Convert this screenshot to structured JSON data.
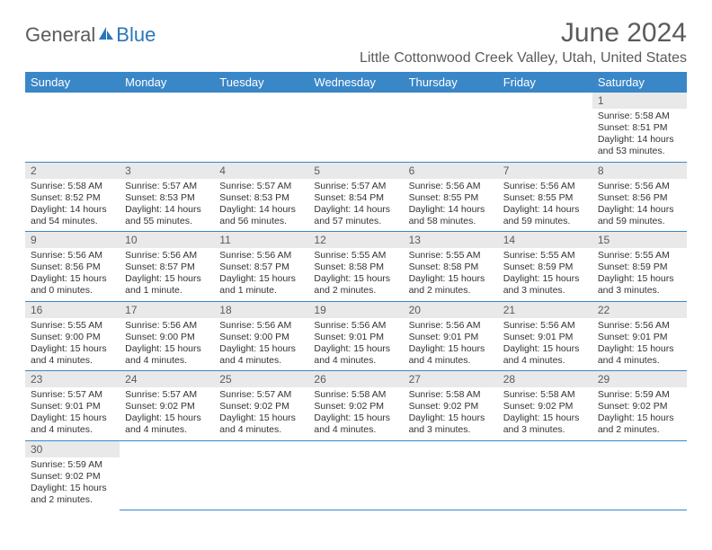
{
  "brand": {
    "part1": "General",
    "part2": "Blue"
  },
  "title": "June 2024",
  "location": "Little Cottonwood Creek Valley, Utah, United States",
  "colors": {
    "header_bg": "#3a87c8",
    "header_text": "#ffffff",
    "daynum_bg": "#e9e9e9",
    "text_gray": "#5b5b5b",
    "rule": "#3a87c8",
    "logo_blue": "#2876bb"
  },
  "typography": {
    "title_fontsize": 30,
    "location_fontsize": 16,
    "header_fontsize": 13,
    "daynum_fontsize": 12,
    "detail_fontsize": 10.5
  },
  "days": [
    "Sunday",
    "Monday",
    "Tuesday",
    "Wednesday",
    "Thursday",
    "Friday",
    "Saturday"
  ],
  "weeks": [
    [
      null,
      null,
      null,
      null,
      null,
      null,
      {
        "n": "1",
        "sr": "Sunrise: 5:58 AM",
        "ss": "Sunset: 8:51 PM",
        "dl": "Daylight: 14 hours and 53 minutes."
      }
    ],
    [
      {
        "n": "2",
        "sr": "Sunrise: 5:58 AM",
        "ss": "Sunset: 8:52 PM",
        "dl": "Daylight: 14 hours and 54 minutes."
      },
      {
        "n": "3",
        "sr": "Sunrise: 5:57 AM",
        "ss": "Sunset: 8:53 PM",
        "dl": "Daylight: 14 hours and 55 minutes."
      },
      {
        "n": "4",
        "sr": "Sunrise: 5:57 AM",
        "ss": "Sunset: 8:53 PM",
        "dl": "Daylight: 14 hours and 56 minutes."
      },
      {
        "n": "5",
        "sr": "Sunrise: 5:57 AM",
        "ss": "Sunset: 8:54 PM",
        "dl": "Daylight: 14 hours and 57 minutes."
      },
      {
        "n": "6",
        "sr": "Sunrise: 5:56 AM",
        "ss": "Sunset: 8:55 PM",
        "dl": "Daylight: 14 hours and 58 minutes."
      },
      {
        "n": "7",
        "sr": "Sunrise: 5:56 AM",
        "ss": "Sunset: 8:55 PM",
        "dl": "Daylight: 14 hours and 59 minutes."
      },
      {
        "n": "8",
        "sr": "Sunrise: 5:56 AM",
        "ss": "Sunset: 8:56 PM",
        "dl": "Daylight: 14 hours and 59 minutes."
      }
    ],
    [
      {
        "n": "9",
        "sr": "Sunrise: 5:56 AM",
        "ss": "Sunset: 8:56 PM",
        "dl": "Daylight: 15 hours and 0 minutes."
      },
      {
        "n": "10",
        "sr": "Sunrise: 5:56 AM",
        "ss": "Sunset: 8:57 PM",
        "dl": "Daylight: 15 hours and 1 minute."
      },
      {
        "n": "11",
        "sr": "Sunrise: 5:56 AM",
        "ss": "Sunset: 8:57 PM",
        "dl": "Daylight: 15 hours and 1 minute."
      },
      {
        "n": "12",
        "sr": "Sunrise: 5:55 AM",
        "ss": "Sunset: 8:58 PM",
        "dl": "Daylight: 15 hours and 2 minutes."
      },
      {
        "n": "13",
        "sr": "Sunrise: 5:55 AM",
        "ss": "Sunset: 8:58 PM",
        "dl": "Daylight: 15 hours and 2 minutes."
      },
      {
        "n": "14",
        "sr": "Sunrise: 5:55 AM",
        "ss": "Sunset: 8:59 PM",
        "dl": "Daylight: 15 hours and 3 minutes."
      },
      {
        "n": "15",
        "sr": "Sunrise: 5:55 AM",
        "ss": "Sunset: 8:59 PM",
        "dl": "Daylight: 15 hours and 3 minutes."
      }
    ],
    [
      {
        "n": "16",
        "sr": "Sunrise: 5:55 AM",
        "ss": "Sunset: 9:00 PM",
        "dl": "Daylight: 15 hours and 4 minutes."
      },
      {
        "n": "17",
        "sr": "Sunrise: 5:56 AM",
        "ss": "Sunset: 9:00 PM",
        "dl": "Daylight: 15 hours and 4 minutes."
      },
      {
        "n": "18",
        "sr": "Sunrise: 5:56 AM",
        "ss": "Sunset: 9:00 PM",
        "dl": "Daylight: 15 hours and 4 minutes."
      },
      {
        "n": "19",
        "sr": "Sunrise: 5:56 AM",
        "ss": "Sunset: 9:01 PM",
        "dl": "Daylight: 15 hours and 4 minutes."
      },
      {
        "n": "20",
        "sr": "Sunrise: 5:56 AM",
        "ss": "Sunset: 9:01 PM",
        "dl": "Daylight: 15 hours and 4 minutes."
      },
      {
        "n": "21",
        "sr": "Sunrise: 5:56 AM",
        "ss": "Sunset: 9:01 PM",
        "dl": "Daylight: 15 hours and 4 minutes."
      },
      {
        "n": "22",
        "sr": "Sunrise: 5:56 AM",
        "ss": "Sunset: 9:01 PM",
        "dl": "Daylight: 15 hours and 4 minutes."
      }
    ],
    [
      {
        "n": "23",
        "sr": "Sunrise: 5:57 AM",
        "ss": "Sunset: 9:01 PM",
        "dl": "Daylight: 15 hours and 4 minutes."
      },
      {
        "n": "24",
        "sr": "Sunrise: 5:57 AM",
        "ss": "Sunset: 9:02 PM",
        "dl": "Daylight: 15 hours and 4 minutes."
      },
      {
        "n": "25",
        "sr": "Sunrise: 5:57 AM",
        "ss": "Sunset: 9:02 PM",
        "dl": "Daylight: 15 hours and 4 minutes."
      },
      {
        "n": "26",
        "sr": "Sunrise: 5:58 AM",
        "ss": "Sunset: 9:02 PM",
        "dl": "Daylight: 15 hours and 4 minutes."
      },
      {
        "n": "27",
        "sr": "Sunrise: 5:58 AM",
        "ss": "Sunset: 9:02 PM",
        "dl": "Daylight: 15 hours and 3 minutes."
      },
      {
        "n": "28",
        "sr": "Sunrise: 5:58 AM",
        "ss": "Sunset: 9:02 PM",
        "dl": "Daylight: 15 hours and 3 minutes."
      },
      {
        "n": "29",
        "sr": "Sunrise: 5:59 AM",
        "ss": "Sunset: 9:02 PM",
        "dl": "Daylight: 15 hours and 2 minutes."
      }
    ],
    [
      {
        "n": "30",
        "sr": "Sunrise: 5:59 AM",
        "ss": "Sunset: 9:02 PM",
        "dl": "Daylight: 15 hours and 2 minutes."
      },
      null,
      null,
      null,
      null,
      null,
      null
    ]
  ]
}
